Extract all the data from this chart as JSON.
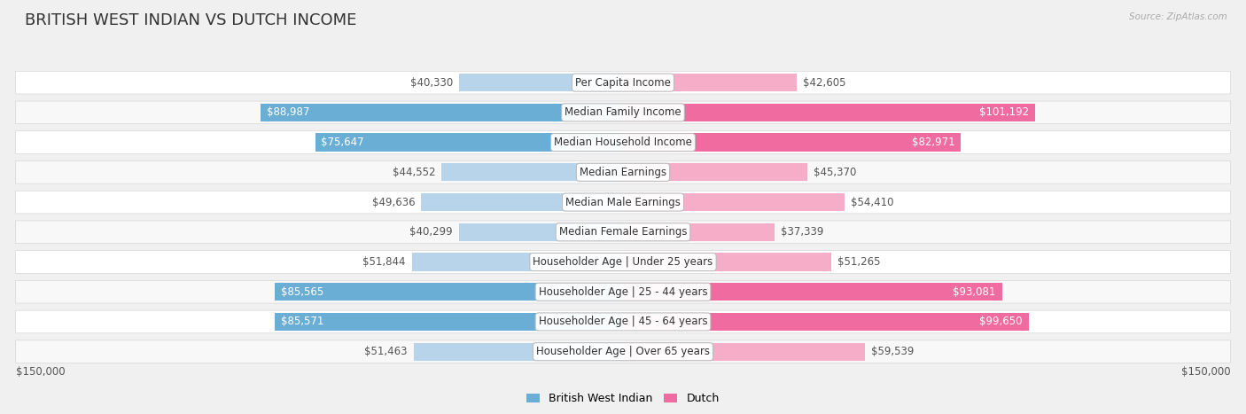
{
  "title": "BRITISH WEST INDIAN VS DUTCH INCOME",
  "source": "Source: ZipAtlas.com",
  "categories": [
    "Per Capita Income",
    "Median Family Income",
    "Median Household Income",
    "Median Earnings",
    "Median Male Earnings",
    "Median Female Earnings",
    "Householder Age | Under 25 years",
    "Householder Age | 25 - 44 years",
    "Householder Age | 45 - 64 years",
    "Householder Age | Over 65 years"
  ],
  "left_values": [
    40330,
    88987,
    75647,
    44552,
    49636,
    40299,
    51844,
    85565,
    85571,
    51463
  ],
  "right_values": [
    42605,
    101192,
    82971,
    45370,
    54410,
    37339,
    51265,
    93081,
    99650,
    59539
  ],
  "left_labels": [
    "$40,330",
    "$88,987",
    "$75,647",
    "$44,552",
    "$49,636",
    "$40,299",
    "$51,844",
    "$85,565",
    "$85,571",
    "$51,463"
  ],
  "right_labels": [
    "$42,605",
    "$101,192",
    "$82,971",
    "$45,370",
    "$54,410",
    "$37,339",
    "$51,265",
    "$93,081",
    "$99,650",
    "$59,539"
  ],
  "max_value": 150000,
  "left_color_strong": "#6aaed6",
  "left_color_light": "#b8d4ea",
  "right_color_strong": "#f06ba0",
  "right_color_light": "#f5adc8",
  "strong_threshold": 70000,
  "background_color": "#f0f0f0",
  "row_bg_odd": "#f8f8f8",
  "row_bg_even": "#ffffff",
  "legend_left": "British West Indian",
  "legend_right": "Dutch",
  "xlabel_left": "$150,000",
  "xlabel_right": "$150,000",
  "title_fontsize": 13,
  "label_fontsize": 8.5,
  "cat_fontsize": 8.5
}
